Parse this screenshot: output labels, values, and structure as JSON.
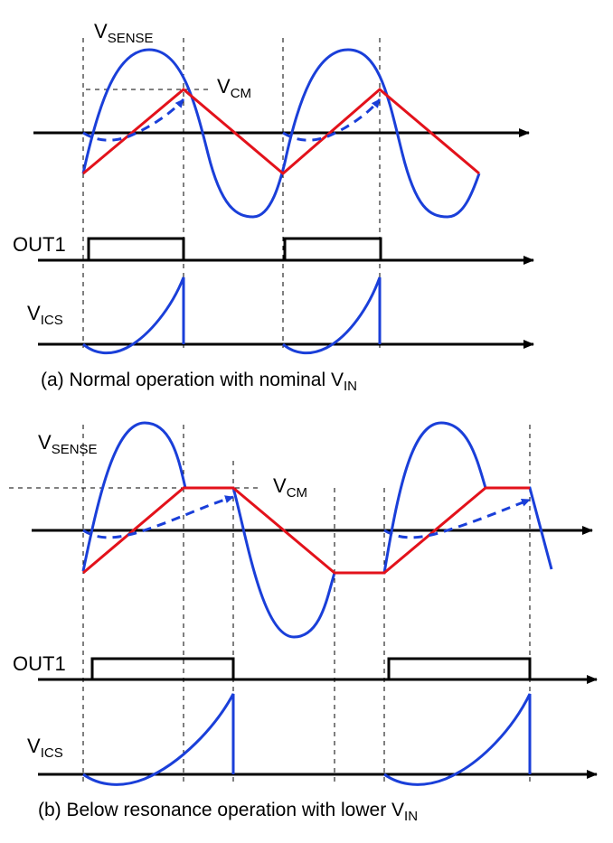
{
  "panel_a": {
    "vsense": {
      "main": "V",
      "sub": "SENSE"
    },
    "vcm": {
      "main": "V",
      "sub": "CM"
    },
    "out1": "OUT1",
    "vics": {
      "main": "V",
      "sub": "ICS"
    },
    "caption": {
      "main": "(a) Normal operation with nominal V",
      "sub": "IN"
    }
  },
  "panel_b": {
    "vsense": {
      "main": "V",
      "sub": "SENSE"
    },
    "vcm": {
      "main": "V",
      "sub": "CM"
    },
    "out1": "OUT1",
    "vics": {
      "main": "V",
      "sub": "ICS"
    },
    "caption": {
      "main": "(b) Below resonance operation with lower V",
      "sub": "IN"
    }
  },
  "colors": {
    "sense": "#1a3fd9",
    "triangle": "#e3121b",
    "axis": "#000000"
  }
}
